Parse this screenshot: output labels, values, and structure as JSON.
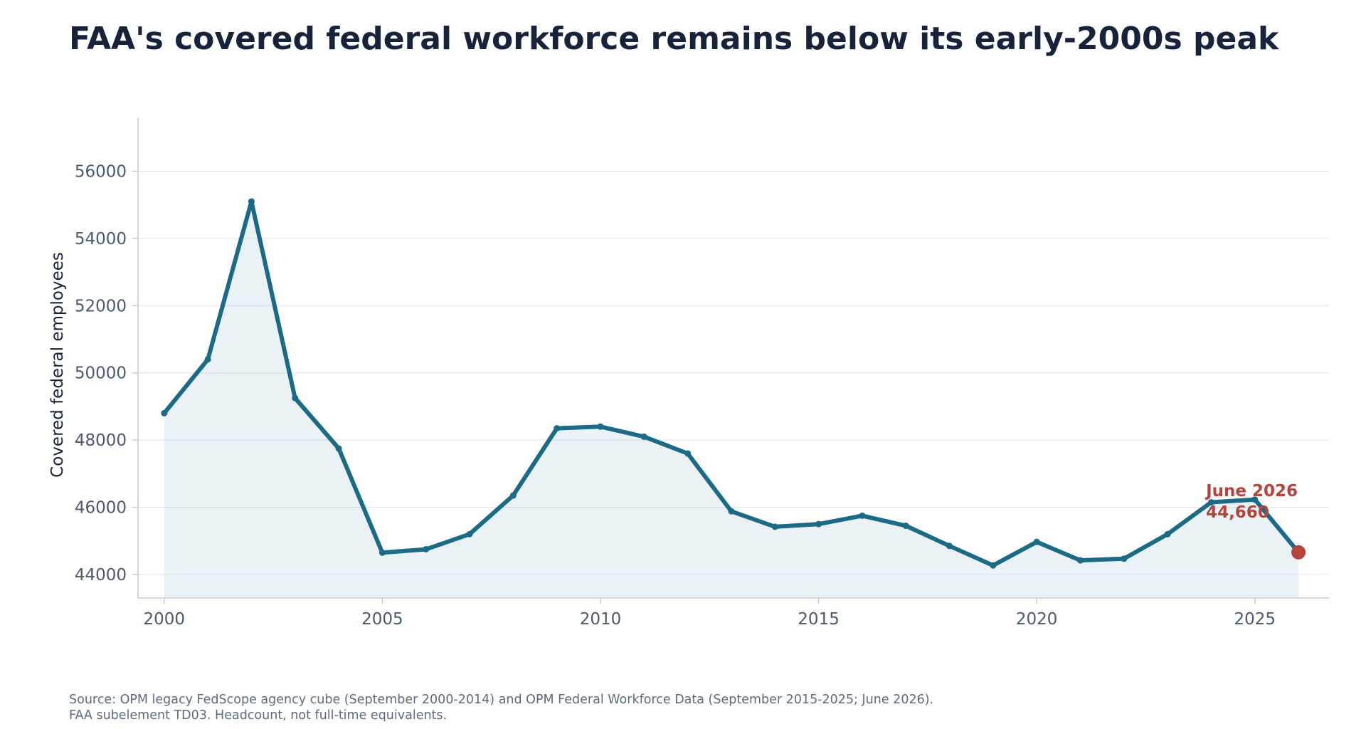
{
  "chart_data": {
    "type": "area",
    "title": "FAA's covered federal workforce remains below its early-2000s peak",
    "ylabel": "Covered federal employees",
    "xlabel": "",
    "x": [
      2000,
      2001,
      2002,
      2003,
      2004,
      2005,
      2006,
      2007,
      2008,
      2009,
      2010,
      2011,
      2012,
      2013,
      2014,
      2015,
      2016,
      2017,
      2018,
      2019,
      2020,
      2021,
      2022,
      2023,
      2024,
      2025,
      2026
    ],
    "series": [
      {
        "values": [
          48800,
          50400,
          55100,
          49250,
          47750,
          44650,
          44750,
          45200,
          46350,
          48350,
          48400,
          48100,
          47600,
          45880,
          45420,
          45500,
          45750,
          45450,
          44850,
          44270,
          44970,
          44420,
          44470,
          45200,
          46150,
          46230,
          44660
        ],
        "color": "#1b6a86"
      }
    ],
    "xticks": [
      2000,
      2005,
      2010,
      2015,
      2020,
      2025
    ],
    "yticks": [
      44000,
      46000,
      48000,
      50000,
      52000,
      54000,
      56000
    ],
    "xlim": [
      1999.4,
      2026.7
    ],
    "ylim": [
      43300,
      57600
    ],
    "grid": "horizontal",
    "legend": "none",
    "annotation": {
      "line1": "June 2026",
      "line2": "44,660",
      "color": "#b5443a"
    },
    "source_line1": "Source: OPM legacy FedScope agency cube (September 2000-2014) and OPM Federal Workforce Data (September 2015-2025; June 2026).",
    "source_line2": "FAA subelement TD03. Headcount, not full-time equivalents."
  }
}
